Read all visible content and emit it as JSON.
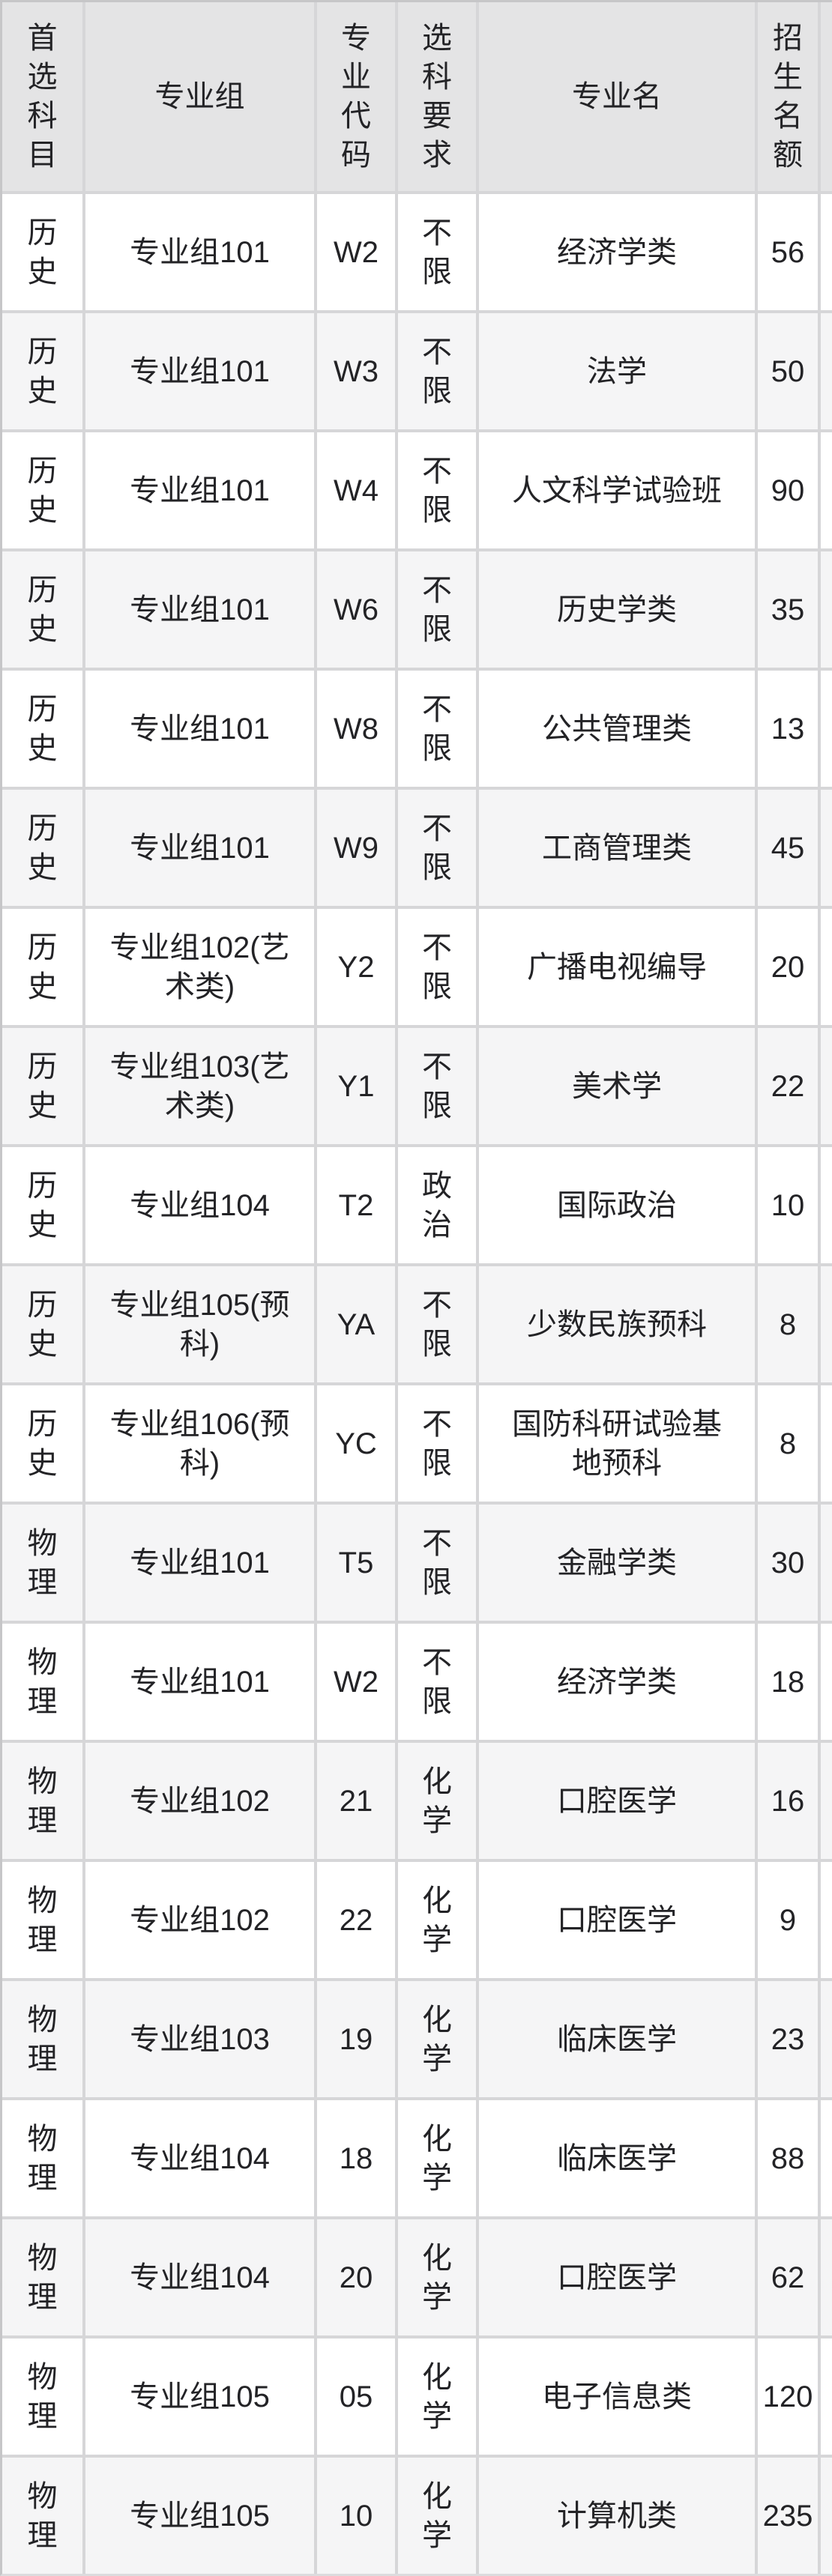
{
  "table": {
    "columns": [
      "首选科目",
      "专业组",
      "专业代码",
      "选科要求",
      "专业名",
      "招生名额"
    ],
    "rows": [
      [
        "历史",
        "专业组101",
        "W2",
        "不限",
        "经济学类",
        "56"
      ],
      [
        "历史",
        "专业组101",
        "W3",
        "不限",
        "法学",
        "50"
      ],
      [
        "历史",
        "专业组101",
        "W4",
        "不限",
        "人文科学试验班",
        "90"
      ],
      [
        "历史",
        "专业组101",
        "W6",
        "不限",
        "历史学类",
        "35"
      ],
      [
        "历史",
        "专业组101",
        "W8",
        "不限",
        "公共管理类",
        "13"
      ],
      [
        "历史",
        "专业组101",
        "W9",
        "不限",
        "工商管理类",
        "45"
      ],
      [
        "历史",
        "专业组102(艺术类)",
        "Y2",
        "不限",
        "广播电视编导",
        "20"
      ],
      [
        "历史",
        "专业组103(艺术类)",
        "Y1",
        "不限",
        "美术学",
        "22"
      ],
      [
        "历史",
        "专业组104",
        "T2",
        "政治",
        "国际政治",
        "10"
      ],
      [
        "历史",
        "专业组105(预科)",
        "YA",
        "不限",
        "少数民族预科",
        "8"
      ],
      [
        "历史",
        "专业组106(预科)",
        "YC",
        "不限",
        "国防科研试验基地预科",
        "8"
      ],
      [
        "物理",
        "专业组101",
        "T5",
        "不限",
        "金融学类",
        "30"
      ],
      [
        "物理",
        "专业组101",
        "W2",
        "不限",
        "经济学类",
        "18"
      ],
      [
        "物理",
        "专业组102",
        "21",
        "化学",
        "口腔医学",
        "16"
      ],
      [
        "物理",
        "专业组102",
        "22",
        "化学",
        "口腔医学",
        "9"
      ],
      [
        "物理",
        "专业组103",
        "19",
        "化学",
        "临床医学",
        "23"
      ],
      [
        "物理",
        "专业组104",
        "18",
        "化学",
        "临床医学",
        "88"
      ],
      [
        "物理",
        "专业组104",
        "20",
        "化学",
        "口腔医学",
        "62"
      ],
      [
        "物理",
        "专业组105",
        "05",
        "化学",
        "电子信息类",
        "120"
      ],
      [
        "物理",
        "专业组105",
        "10",
        "化学",
        "计算机类",
        "235"
      ]
    ]
  },
  "colors": {
    "header_bg": "#e4e4e5",
    "row_bg": "#ffffff",
    "row_alt_bg": "#f5f5f6",
    "gridline": "#d6d6d8",
    "outer_border": "#c6c6c8",
    "text": "#232326"
  }
}
